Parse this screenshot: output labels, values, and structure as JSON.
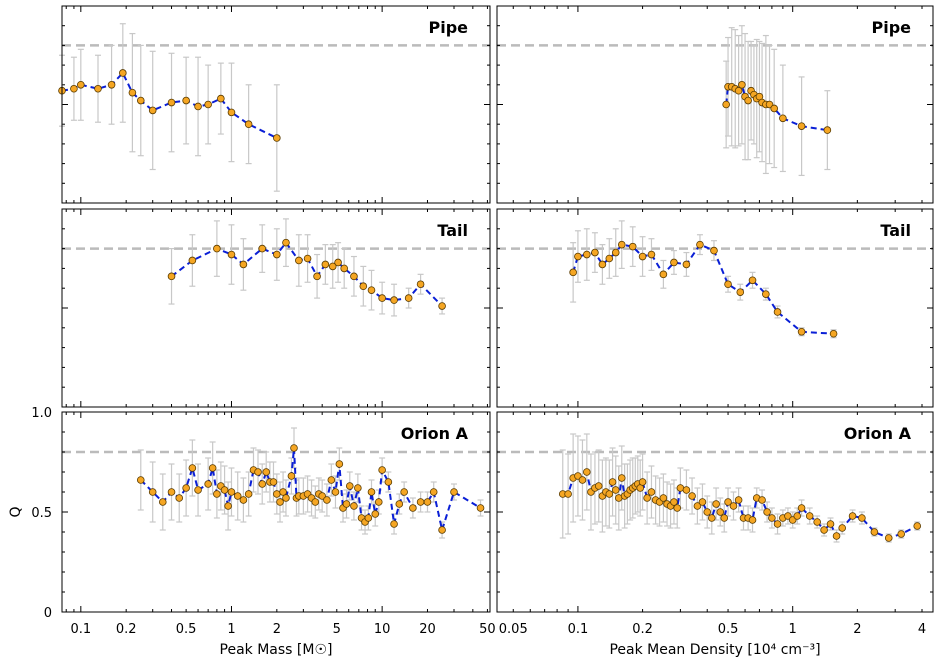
{
  "chart_data": [
    {
      "type": "scatter",
      "title": "Pipe",
      "xscale": "log",
      "xlim": [
        0.075,
        52
      ],
      "ylim": [
        0,
        1
      ],
      "reference_line_y": 0.8,
      "x": [
        0.075,
        0.09,
        0.1,
        0.13,
        0.16,
        0.19,
        0.22,
        0.25,
        0.3,
        0.4,
        0.5,
        0.6,
        0.7,
        0.85,
        1.0,
        1.3,
        2.0
      ],
      "y": [
        0.57,
        0.58,
        0.6,
        0.58,
        0.6,
        0.66,
        0.56,
        0.52,
        0.47,
        0.51,
        0.52,
        0.49,
        0.5,
        0.53,
        0.46,
        0.4,
        0.33
      ],
      "err": [
        0.18,
        0.16,
        0.18,
        0.17,
        0.2,
        0.25,
        0.3,
        0.28,
        0.3,
        0.25,
        0.22,
        0.25,
        0.2,
        0.18,
        0.25,
        0.2,
        0.27
      ]
    },
    {
      "type": "scatter",
      "title": "Pipe",
      "xscale": "log",
      "xlim": [
        0.042,
        4.5
      ],
      "ylim": [
        0,
        1
      ],
      "reference_line_y": 0.8,
      "x": [
        0.49,
        0.5,
        0.52,
        0.54,
        0.56,
        0.58,
        0.6,
        0.62,
        0.64,
        0.66,
        0.68,
        0.7,
        0.72,
        0.75,
        0.78,
        0.82,
        0.9,
        1.1,
        1.45
      ],
      "y": [
        0.5,
        0.59,
        0.59,
        0.58,
        0.57,
        0.6,
        0.54,
        0.52,
        0.57,
        0.55,
        0.53,
        0.54,
        0.51,
        0.5,
        0.5,
        0.48,
        0.43,
        0.39,
        0.37
      ],
      "err": [
        0.22,
        0.25,
        0.3,
        0.3,
        0.28,
        0.3,
        0.32,
        0.3,
        0.25,
        0.25,
        0.3,
        0.28,
        0.3,
        0.35,
        0.3,
        0.3,
        0.27,
        0.25,
        0.2
      ]
    },
    {
      "type": "scatter",
      "title": "Tail",
      "xscale": "log",
      "xlim": [
        0.075,
        52
      ],
      "ylim": [
        0,
        1
      ],
      "reference_line_y": 0.8,
      "x": [
        0.4,
        0.55,
        0.8,
        1.0,
        1.2,
        1.6,
        2.0,
        2.3,
        2.8,
        3.2,
        3.7,
        4.2,
        4.7,
        5.1,
        5.6,
        6.5,
        7.5,
        8.5,
        10,
        12,
        15,
        18,
        25
      ],
      "y": [
        0.66,
        0.74,
        0.8,
        0.77,
        0.72,
        0.8,
        0.77,
        0.83,
        0.74,
        0.75,
        0.66,
        0.72,
        0.71,
        0.73,
        0.7,
        0.66,
        0.61,
        0.59,
        0.55,
        0.54,
        0.55,
        0.62,
        0.51
      ],
      "err": [
        0.14,
        0.13,
        0.14,
        0.15,
        0.13,
        0.12,
        0.13,
        0.12,
        0.13,
        0.12,
        0.11,
        0.1,
        0.11,
        0.1,
        0.1,
        0.1,
        0.1,
        0.1,
        0.08,
        0.08,
        0.05,
        0.05,
        0.04
      ]
    },
    {
      "type": "scatter",
      "title": "Tail",
      "xscale": "log",
      "xlim": [
        0.042,
        4.5
      ],
      "ylim": [
        0,
        1
      ],
      "reference_line_y": 0.8,
      "x": [
        0.095,
        0.1,
        0.11,
        0.12,
        0.13,
        0.14,
        0.15,
        0.16,
        0.18,
        0.2,
        0.22,
        0.25,
        0.28,
        0.32,
        0.37,
        0.43,
        0.5,
        0.57,
        0.65,
        0.75,
        0.85,
        1.1,
        1.55
      ],
      "y": [
        0.68,
        0.76,
        0.77,
        0.78,
        0.72,
        0.75,
        0.78,
        0.82,
        0.81,
        0.76,
        0.77,
        0.67,
        0.73,
        0.72,
        0.82,
        0.79,
        0.62,
        0.58,
        0.64,
        0.57,
        0.48,
        0.38,
        0.37
      ],
      "err": [
        0.15,
        0.13,
        0.13,
        0.1,
        0.1,
        0.1,
        0.12,
        0.12,
        0.1,
        0.1,
        0.08,
        0.07,
        0.06,
        0.06,
        0.05,
        0.05,
        0.04,
        0.04,
        0.04,
        0.03,
        0.03,
        0.02,
        0.02
      ]
    },
    {
      "type": "scatter",
      "title": "Orion A",
      "xscale": "log",
      "xlim": [
        0.075,
        52
      ],
      "ylim": [
        0,
        1
      ],
      "reference_line_y": 0.8,
      "xlabel": "Peak Mass [M☉]",
      "ylabel": "Q",
      "x": [
        0.25,
        0.3,
        0.35,
        0.4,
        0.45,
        0.5,
        0.55,
        0.6,
        0.7,
        0.75,
        0.8,
        0.85,
        0.9,
        0.95,
        1.0,
        1.1,
        1.2,
        1.3,
        1.4,
        1.5,
        1.6,
        1.7,
        1.8,
        1.9,
        2.0,
        2.1,
        2.2,
        2.3,
        2.5,
        2.6,
        2.7,
        2.8,
        3.0,
        3.2,
        3.4,
        3.6,
        3.8,
        4.0,
        4.3,
        4.6,
        4.9,
        5.2,
        5.5,
        5.8,
        6.1,
        6.5,
        6.9,
        7.3,
        7.7,
        8.1,
        8.5,
        9.0,
        9.5,
        10,
        11,
        12,
        13,
        14,
        16,
        18,
        20,
        22,
        25,
        30,
        45
      ],
      "y": [
        0.66,
        0.6,
        0.55,
        0.6,
        0.57,
        0.62,
        0.72,
        0.61,
        0.64,
        0.72,
        0.59,
        0.63,
        0.61,
        0.53,
        0.6,
        0.58,
        0.56,
        0.59,
        0.71,
        0.7,
        0.64,
        0.7,
        0.65,
        0.65,
        0.59,
        0.55,
        0.6,
        0.57,
        0.68,
        0.82,
        0.57,
        0.58,
        0.58,
        0.59,
        0.57,
        0.55,
        0.59,
        0.58,
        0.56,
        0.66,
        0.6,
        0.74,
        0.52,
        0.54,
        0.63,
        0.53,
        0.62,
        0.47,
        0.45,
        0.47,
        0.6,
        0.49,
        0.55,
        0.71,
        0.65,
        0.44,
        0.54,
        0.6,
        0.52,
        0.55,
        0.55,
        0.6,
        0.41,
        0.6,
        0.52
      ],
      "err": [
        0.15,
        0.15,
        0.14,
        0.14,
        0.12,
        0.14,
        0.14,
        0.13,
        0.13,
        0.13,
        0.12,
        0.12,
        0.12,
        0.12,
        0.12,
        0.12,
        0.11,
        0.11,
        0.11,
        0.11,
        0.1,
        0.1,
        0.1,
        0.1,
        0.1,
        0.1,
        0.1,
        0.09,
        0.09,
        0.1,
        0.09,
        0.09,
        0.09,
        0.09,
        0.09,
        0.08,
        0.08,
        0.08,
        0.08,
        0.08,
        0.08,
        0.08,
        0.07,
        0.07,
        0.07,
        0.07,
        0.07,
        0.06,
        0.06,
        0.06,
        0.06,
        0.06,
        0.06,
        0.06,
        0.05,
        0.05,
        0.05,
        0.05,
        0.05,
        0.05,
        0.05,
        0.05,
        0.04,
        0.04,
        0.04
      ]
    },
    {
      "type": "scatter",
      "title": "Orion A",
      "xscale": "log",
      "xlim": [
        0.042,
        4.5
      ],
      "ylim": [
        0,
        1
      ],
      "reference_line_y": 0.8,
      "xlabel": "Peak Mean Density [10⁴ cm⁻³]",
      "x": [
        0.085,
        0.09,
        0.095,
        0.1,
        0.105,
        0.11,
        0.115,
        0.12,
        0.125,
        0.13,
        0.135,
        0.14,
        0.145,
        0.15,
        0.155,
        0.16,
        0.165,
        0.17,
        0.175,
        0.18,
        0.185,
        0.19,
        0.195,
        0.2,
        0.21,
        0.22,
        0.23,
        0.24,
        0.25,
        0.26,
        0.27,
        0.28,
        0.29,
        0.3,
        0.32,
        0.34,
        0.36,
        0.38,
        0.4,
        0.42,
        0.44,
        0.46,
        0.48,
        0.5,
        0.53,
        0.56,
        0.59,
        0.62,
        0.65,
        0.68,
        0.72,
        0.76,
        0.8,
        0.85,
        0.9,
        0.95,
        1.0,
        1.05,
        1.1,
        1.2,
        1.3,
        1.4,
        1.5,
        1.6,
        1.7,
        1.9,
        2.1,
        2.4,
        2.8,
        3.2,
        3.8
      ],
      "y": [
        0.59,
        0.59,
        0.67,
        0.68,
        0.66,
        0.7,
        0.6,
        0.62,
        0.63,
        0.58,
        0.6,
        0.59,
        0.65,
        0.61,
        0.57,
        0.67,
        0.58,
        0.59,
        0.61,
        0.62,
        0.63,
        0.64,
        0.62,
        0.65,
        0.57,
        0.6,
        0.56,
        0.55,
        0.57,
        0.54,
        0.53,
        0.55,
        0.52,
        0.62,
        0.61,
        0.58,
        0.53,
        0.55,
        0.5,
        0.47,
        0.54,
        0.5,
        0.47,
        0.55,
        0.53,
        0.56,
        0.47,
        0.47,
        0.46,
        0.57,
        0.56,
        0.5,
        0.47,
        0.44,
        0.47,
        0.48,
        0.46,
        0.48,
        0.52,
        0.48,
        0.45,
        0.41,
        0.44,
        0.38,
        0.42,
        0.48,
        0.47,
        0.4,
        0.37,
        0.39,
        0.43
      ],
      "err": [
        0.22,
        0.2,
        0.22,
        0.2,
        0.2,
        0.19,
        0.19,
        0.18,
        0.18,
        0.18,
        0.17,
        0.17,
        0.17,
        0.17,
        0.16,
        0.16,
        0.16,
        0.15,
        0.15,
        0.15,
        0.14,
        0.14,
        0.14,
        0.14,
        0.13,
        0.13,
        0.12,
        0.12,
        0.12,
        0.11,
        0.11,
        0.11,
        0.1,
        0.1,
        0.1,
        0.09,
        0.09,
        0.09,
        0.08,
        0.08,
        0.08,
        0.07,
        0.07,
        0.07,
        0.07,
        0.06,
        0.06,
        0.06,
        0.06,
        0.05,
        0.05,
        0.05,
        0.05,
        0.05,
        0.04,
        0.04,
        0.04,
        0.04,
        0.04,
        0.04,
        0.03,
        0.03,
        0.03,
        0.03,
        0.03,
        0.03,
        0.03,
        0.02,
        0.02,
        0.02,
        0.02
      ]
    }
  ],
  "axes": {
    "y_ticks": [
      "0",
      "0.5",
      "1.0"
    ],
    "x_ticks_left": [
      "0.1",
      "0.2",
      "0.5",
      "1",
      "2",
      "5",
      "10",
      "20",
      "50"
    ],
    "x_ticks_right": [
      "0.05",
      "0.1",
      "0.2",
      "0.5",
      "1",
      "2",
      "4"
    ],
    "xlabel_left": "Peak Mass [M☉]",
    "xlabel_right": "Peak Mean Density [10⁴ cm⁻³]",
    "ylabel": "Q"
  },
  "colors": {
    "marker_fill": "#f5a623",
    "marker_edge": "#5a3c00",
    "line": "#0a1fd6",
    "errorbar": "#c8c8c8",
    "reference": "#bbbbbb"
  }
}
